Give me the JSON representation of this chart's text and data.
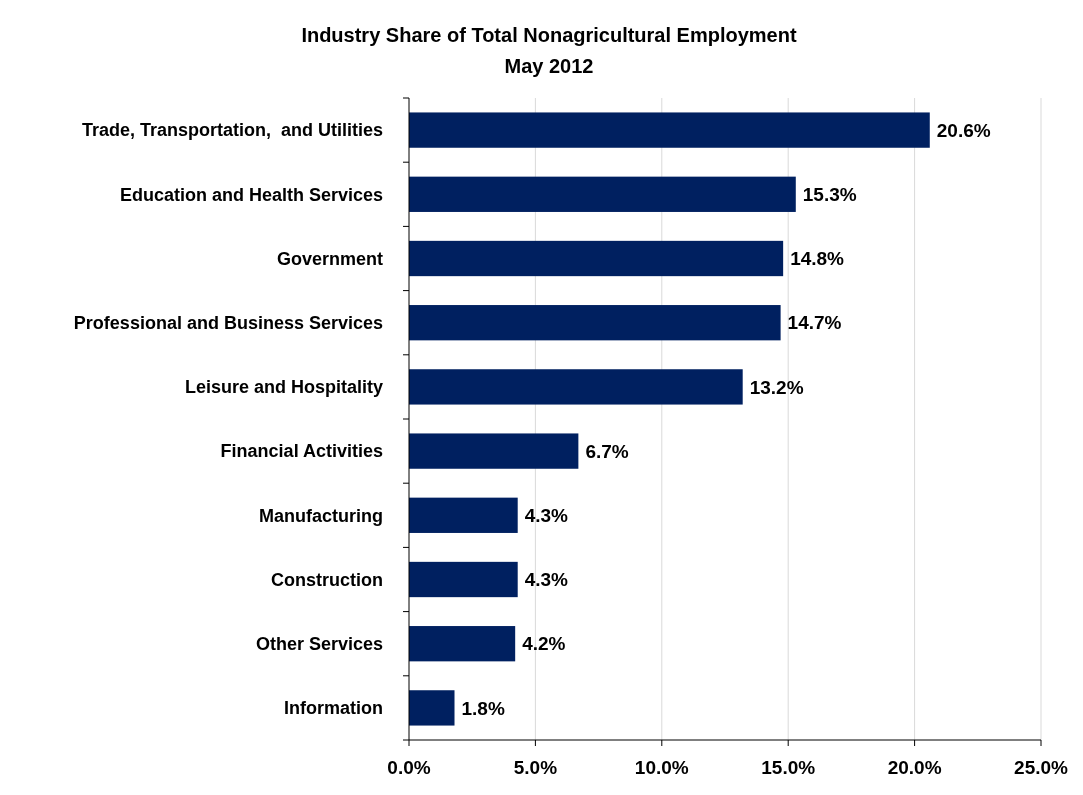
{
  "chart_data": {
    "type": "bar",
    "orientation": "horizontal",
    "title": "Industry Share of Total Nonagricultural Employment",
    "subtitle": "May 2012",
    "categories": [
      "Trade, Transportation,  and Utilities",
      "Education and Health Services",
      "Government",
      "Professional and Business Services",
      "Leisure and Hospitality",
      "Financial Activities",
      "Manufacturing",
      "Construction",
      "Other Services",
      "Information"
    ],
    "values": [
      20.6,
      15.3,
      14.8,
      14.7,
      13.2,
      6.7,
      4.3,
      4.3,
      4.2,
      1.8
    ],
    "value_labels": [
      "20.6%",
      "15.3%",
      "14.8%",
      "14.7%",
      "13.2%",
      "6.7%",
      "4.3%",
      "4.3%",
      "4.2%",
      "1.8%"
    ],
    "color": "#002060",
    "xlim": [
      0,
      25
    ],
    "xticks": [
      {
        "value": 0,
        "label": "0.0%"
      },
      {
        "value": 5,
        "label": "5.0%"
      },
      {
        "value": 10,
        "label": "10.0%"
      },
      {
        "value": 15,
        "label": "15.0%"
      },
      {
        "value": 20,
        "label": "20.0%"
      },
      {
        "value": 25,
        "label": "25.0%"
      }
    ],
    "grid": "x"
  }
}
